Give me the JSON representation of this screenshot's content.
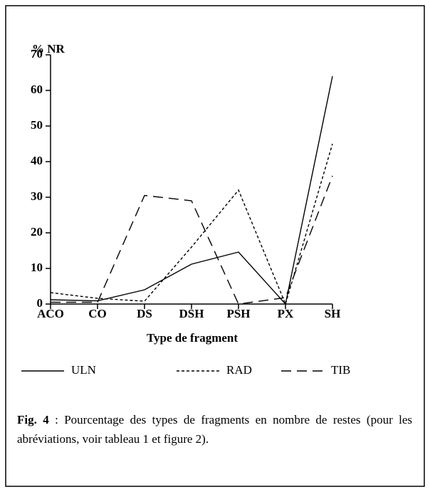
{
  "chart_data": {
    "type": "line",
    "y_label": "% NR",
    "x_label": "Type de fragment",
    "categories": [
      "ACO",
      "CO",
      "DS",
      "DSH",
      "PSH",
      "PX",
      "SH"
    ],
    "series": [
      {
        "name": "ULN",
        "color": "#000000",
        "line_style": "solid",
        "values": [
          1.2,
          0.9,
          4,
          11.2,
          14.6,
          0,
          64
        ]
      },
      {
        "name": "RAD",
        "color": "#000000",
        "line_style": "dotted",
        "values": [
          3.2,
          1.6,
          0.8,
          16,
          32,
          0,
          45
        ]
      },
      {
        "name": "TIB",
        "color": "#000000",
        "line_style": "dashed",
        "values": [
          0.5,
          0.5,
          30.5,
          29,
          0,
          1.8,
          36
        ]
      }
    ],
    "ylim": [
      0,
      70
    ],
    "yticks": [
      0,
      10,
      20,
      30,
      40,
      50,
      60,
      70
    ],
    "legend": "bottom",
    "caption_label": "Fig. 4",
    "caption_text": " : Pourcentage des types de fragments en nombre de restes (pour les abréviations, voir tableau 1 et figure 2)."
  }
}
